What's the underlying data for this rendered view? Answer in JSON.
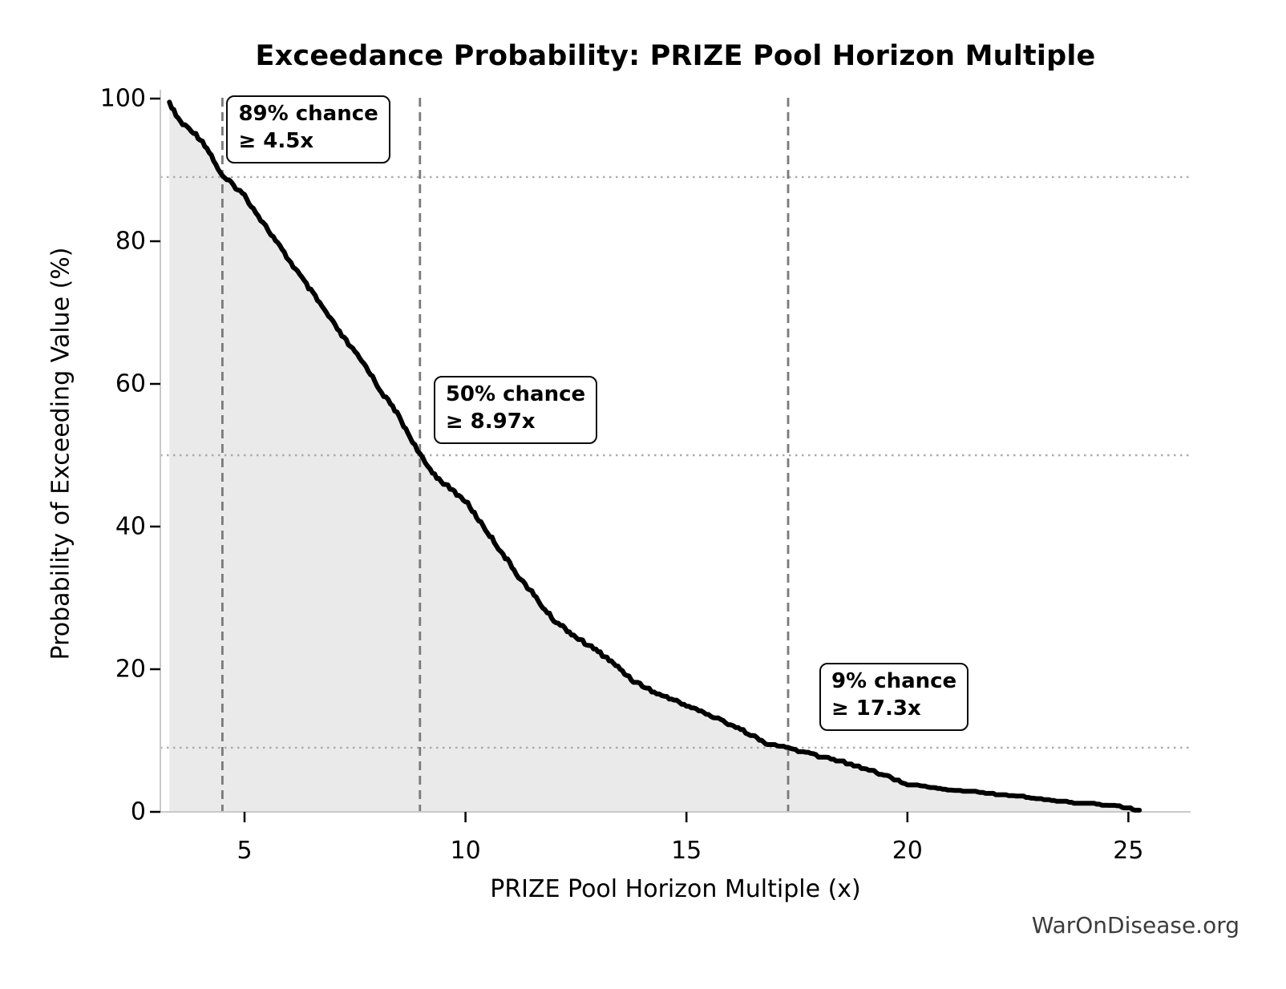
{
  "chart_data": {
    "type": "line",
    "title": "Exceedance Probability: PRIZE Pool Horizon Multiple",
    "xlabel": "PRIZE Pool Horizon Multiple (x)",
    "ylabel": "Probability of Exceeding Value (%)",
    "footer": "WarOnDisease.org",
    "xlim": [
      3.1,
      26.4
    ],
    "ylim": [
      0,
      100
    ],
    "xticks": [
      5,
      10,
      15,
      20,
      25
    ],
    "yticks": [
      0,
      20,
      40,
      60,
      80,
      100
    ],
    "legend": "none",
    "grid": "reference lines only",
    "colors": {
      "line": "#000000",
      "fill": "#eaeaea",
      "dashed_vline": "#7a7a7a",
      "dotted_hline": "#ababab",
      "spine": "#c9c9c9",
      "tick": "#000000"
    },
    "series": [
      {
        "name": "Exceedance probability of PRIZE pool horizon multiple",
        "style": "jagged empirical survival curve, black, filled light gray below",
        "points": [
          [
            3.3,
            99.5
          ],
          [
            3.45,
            97.6
          ],
          [
            3.6,
            96.4
          ],
          [
            3.8,
            95.6
          ],
          [
            4.05,
            94.0
          ],
          [
            4.25,
            92.0
          ],
          [
            4.5,
            89.0
          ],
          [
            4.65,
            88.4
          ],
          [
            4.85,
            87.3
          ],
          [
            5.0,
            86.4
          ],
          [
            5.2,
            84.6
          ],
          [
            5.42,
            82.6
          ],
          [
            5.6,
            81.0
          ],
          [
            5.8,
            79.2
          ],
          [
            6.0,
            77.4
          ],
          [
            6.2,
            75.7
          ],
          [
            6.4,
            73.9
          ],
          [
            6.6,
            72.2
          ],
          [
            6.8,
            70.4
          ],
          [
            7.0,
            68.6
          ],
          [
            7.2,
            66.8
          ],
          [
            7.4,
            65.2
          ],
          [
            7.6,
            63.6
          ],
          [
            7.8,
            62.0
          ],
          [
            8.0,
            59.8
          ],
          [
            8.2,
            58.0
          ],
          [
            8.4,
            56.4
          ],
          [
            8.6,
            54.2
          ],
          [
            8.8,
            52.0
          ],
          [
            8.97,
            50.0
          ],
          [
            9.15,
            48.4
          ],
          [
            9.35,
            47.0
          ],
          [
            9.6,
            45.6
          ],
          [
            9.8,
            44.6
          ],
          [
            10.0,
            43.6
          ],
          [
            10.25,
            41.4
          ],
          [
            10.5,
            39.2
          ],
          [
            10.75,
            37.0
          ],
          [
            11.0,
            34.8
          ],
          [
            11.25,
            32.6
          ],
          [
            11.5,
            30.8
          ],
          [
            11.75,
            28.7
          ],
          [
            12.0,
            26.9
          ],
          [
            12.3,
            25.5
          ],
          [
            12.6,
            24.1
          ],
          [
            12.9,
            22.9
          ],
          [
            13.2,
            21.6
          ],
          [
            13.5,
            20.0
          ],
          [
            13.8,
            18.4
          ],
          [
            14.1,
            17.4
          ],
          [
            14.5,
            16.2
          ],
          [
            15.0,
            15.0
          ],
          [
            15.5,
            13.6
          ],
          [
            16.0,
            12.3
          ],
          [
            16.4,
            11.1
          ],
          [
            16.7,
            9.9
          ],
          [
            17.0,
            9.4
          ],
          [
            17.3,
            9.0
          ],
          [
            17.7,
            8.3
          ],
          [
            18.1,
            7.7
          ],
          [
            18.5,
            7.2
          ],
          [
            18.9,
            6.4
          ],
          [
            19.3,
            5.6
          ],
          [
            19.7,
            4.7
          ],
          [
            20.0,
            4.0
          ],
          [
            20.4,
            3.7
          ],
          [
            20.8,
            3.4
          ],
          [
            21.2,
            3.1
          ],
          [
            21.6,
            2.85
          ],
          [
            22.0,
            2.6
          ],
          [
            22.4,
            2.4
          ],
          [
            22.8,
            2.15
          ],
          [
            23.2,
            1.85
          ],
          [
            23.6,
            1.55
          ],
          [
            24.0,
            1.3
          ],
          [
            24.4,
            1.1
          ],
          [
            24.7,
            0.95
          ],
          [
            24.95,
            0.7
          ],
          [
            25.1,
            0.45
          ],
          [
            25.25,
            0.4
          ]
        ]
      }
    ],
    "annotations": [
      {
        "text_line1": "89% chance",
        "text_line2": "≥ 4.5x",
        "x": 4.5,
        "y": 89
      },
      {
        "text_line1": "50% chance",
        "text_line2": "≥ 8.97x",
        "x": 8.97,
        "y": 50
      },
      {
        "text_line1": "9% chance",
        "text_line2": "≥ 17.3x",
        "x": 17.3,
        "y": 9
      }
    ]
  }
}
